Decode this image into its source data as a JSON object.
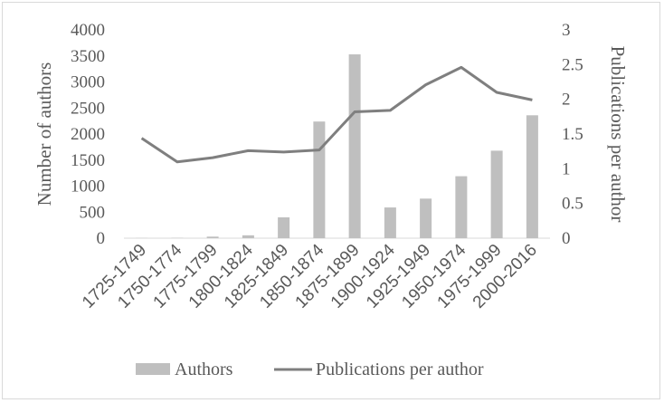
{
  "chart_data": {
    "type": "bar",
    "categories": [
      "1725-1749",
      "1750-1774",
      "1775-1799",
      "1800-1824",
      "1825-1849",
      "1850-1874",
      "1875-1899",
      "1900-1924",
      "1925-1949",
      "1950-1974",
      "1975-1999",
      "2000-2016"
    ],
    "series": [
      {
        "name": "Authors",
        "type": "bar",
        "axis": "left",
        "color": "#bfbfbf",
        "values": [
          3,
          5,
          30,
          55,
          400,
          2240,
          3530,
          590,
          760,
          1190,
          1680,
          2360
        ]
      },
      {
        "name": "Publications per author",
        "type": "line",
        "axis": "right",
        "color": "#7f7f7f",
        "values": [
          1.44,
          1.1,
          1.16,
          1.26,
          1.24,
          1.27,
          1.82,
          1.84,
          2.21,
          2.46,
          2.1,
          1.99
        ]
      }
    ],
    "ylabel": "Number of authors",
    "y2label": "Publications per author",
    "ylim": [
      0,
      4000
    ],
    "y2lim": [
      0,
      3
    ],
    "yticks": [
      "0",
      "500",
      "1000",
      "1500",
      "2000",
      "2500",
      "3000",
      "3500",
      "4000"
    ],
    "y2ticks": [
      "0",
      "0.5",
      "1",
      "1.5",
      "2",
      "2.5",
      "3"
    ],
    "grid": false,
    "legend": "bottom"
  }
}
